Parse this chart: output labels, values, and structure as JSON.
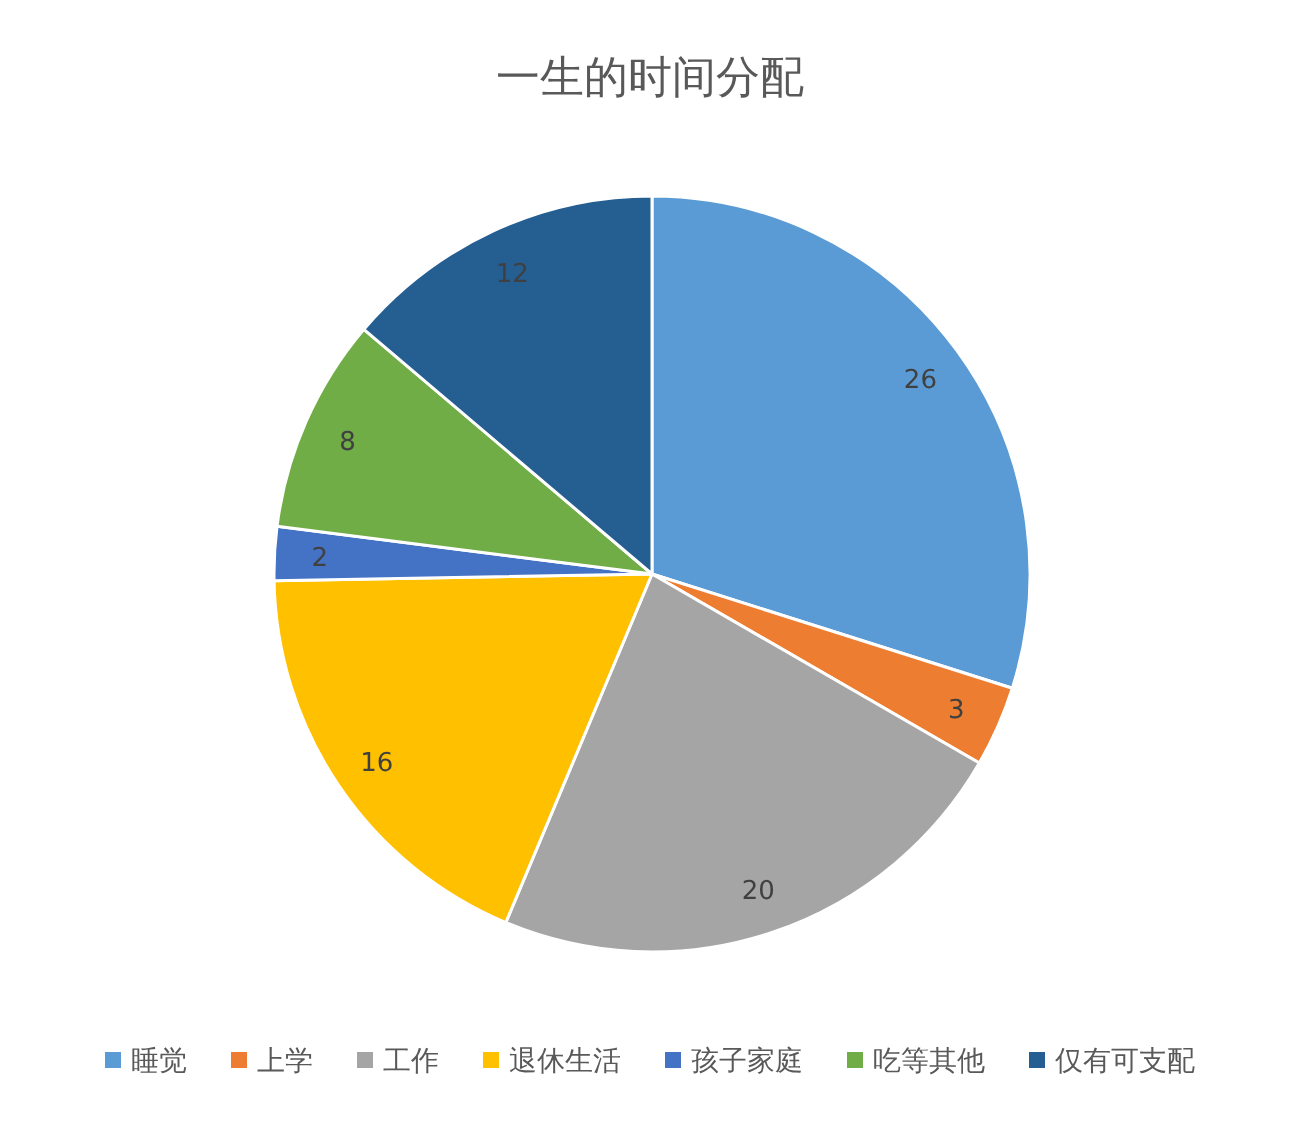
{
  "chart_data": {
    "type": "pie",
    "title": "一生的时间分配",
    "categories": [
      "睡觉",
      "上学",
      "工作",
      "退休生活",
      "孩子家庭",
      "吃等其他",
      "仅有可支配"
    ],
    "values": [
      26,
      3,
      20,
      16,
      2,
      8,
      12
    ],
    "colors": [
      "#5b9bd5",
      "#ed7d31",
      "#a5a5a5",
      "#ffc000",
      "#4472c4",
      "#70ad47",
      "#255e91"
    ],
    "data_labels": true,
    "legend": "bottom"
  }
}
